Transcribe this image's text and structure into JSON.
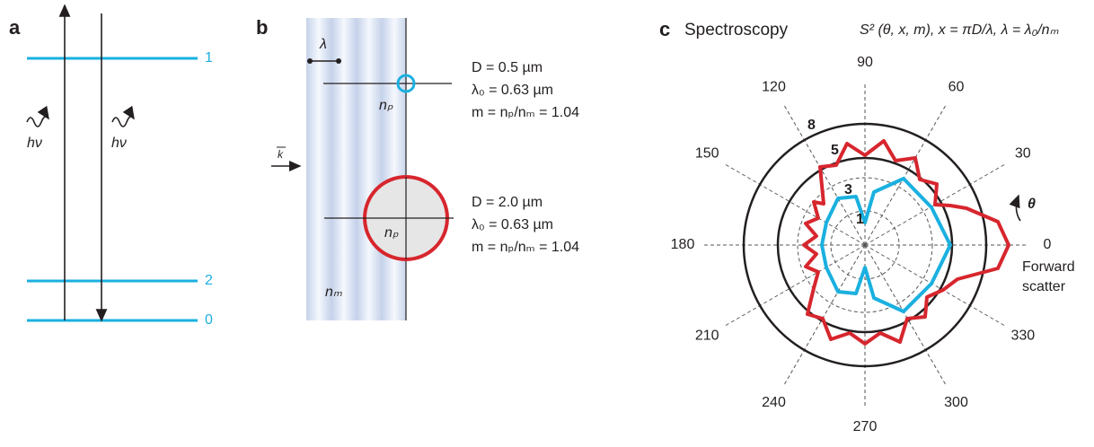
{
  "panel_a": {
    "label": "a",
    "levels": [
      "1",
      "2",
      "0"
    ],
    "photons": [
      "hν",
      "hν"
    ]
  },
  "panel_b": {
    "label": "b",
    "wavelength": "λ",
    "wave_vector": "k",
    "medium": "nₘ",
    "particles": [
      {
        "index": "nₚ",
        "lines": [
          "D = 0.5 µm",
          "λ₀ = 0.63 µm",
          "m = nₚ/nₘ = 1.04"
        ]
      },
      {
        "index": "nₚ",
        "lines": [
          "D = 2.0 µm",
          "λ₀ = 0.63 µm",
          "m = nₚ/nₘ = 1.04"
        ]
      }
    ]
  },
  "panel_c": {
    "label": "c",
    "title": "Spectroscopy",
    "formula": "S² (θ, x, m), x = πD/λ, λ = λ₀/nₘ",
    "angle_labels": [
      "0",
      "30",
      "60",
      "90",
      "120",
      "150",
      "180",
      "210",
      "240",
      "270",
      "300",
      "330"
    ],
    "radial_labels": [
      "1",
      "3",
      "5",
      "8"
    ],
    "direction": "θ",
    "annotation": [
      "Forward",
      "scatter"
    ]
  }
}
